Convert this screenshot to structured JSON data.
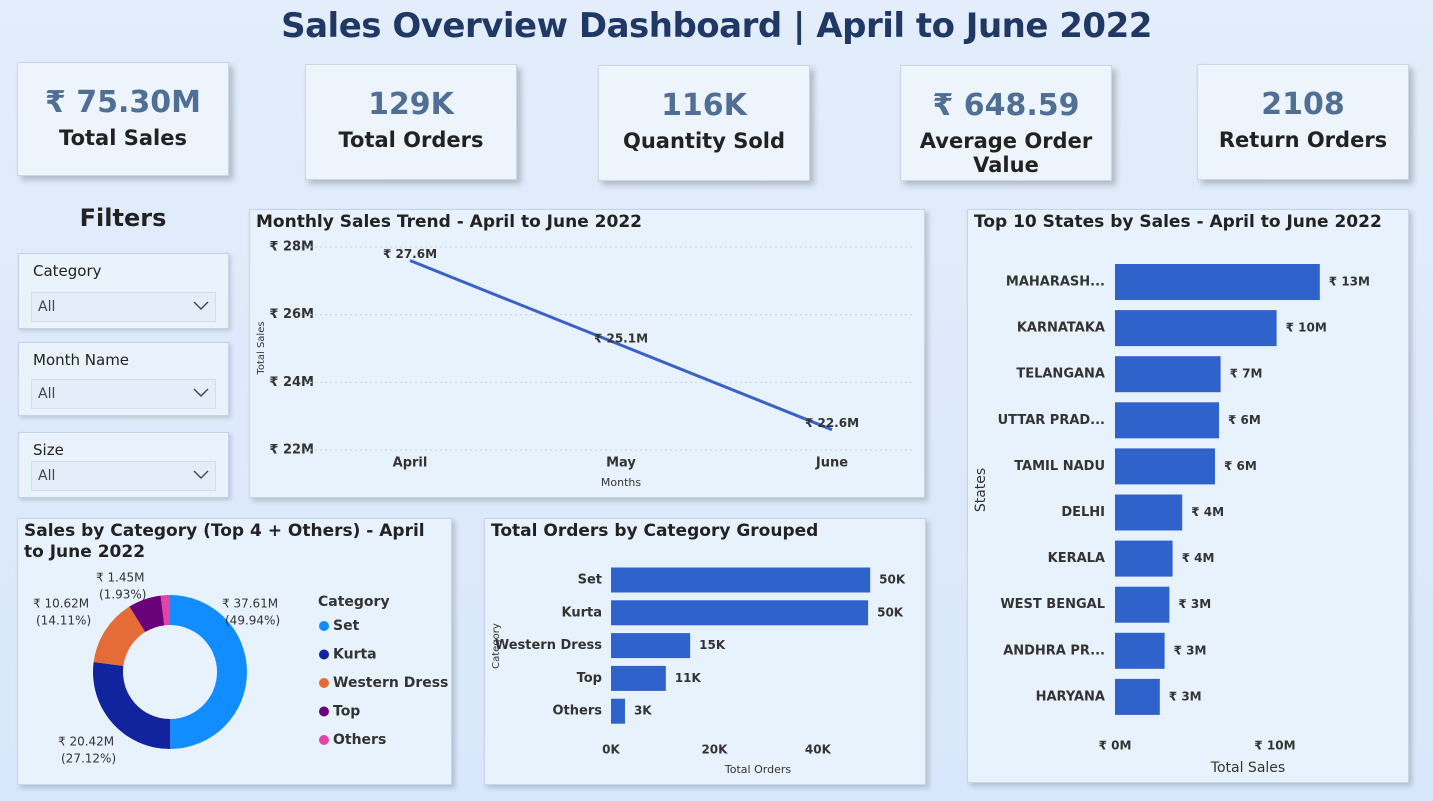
{
  "header": {
    "title": "Sales Overview Dashboard | April to June 2022"
  },
  "kpis": [
    {
      "value": "₹ 75.30M",
      "label": "Total Sales"
    },
    {
      "value": "129K",
      "label": "Total Orders"
    },
    {
      "value": "116K",
      "label": "Quantity Sold"
    },
    {
      "value": "₹ 648.59",
      "label": "Average Order Value"
    },
    {
      "value": "2108",
      "label": "Return Orders"
    }
  ],
  "filters": {
    "title": "Filters",
    "items": [
      {
        "label": "Category",
        "value": "All"
      },
      {
        "label": "Month Name",
        "value": "All"
      },
      {
        "label": "Size",
        "value": "All"
      }
    ]
  },
  "chart_data": [
    {
      "type": "line",
      "title": "Monthly Sales Trend - April to June 2022",
      "x_label": "Months",
      "y_label": "Total Sales",
      "categories": [
        "April",
        "May",
        "June"
      ],
      "values": [
        27.6,
        25.1,
        22.6
      ],
      "value_labels": [
        "₹ 27.6M",
        "₹ 25.1M",
        "₹ 22.6M"
      ],
      "color": "#3762c8",
      "ylim": [
        22,
        28
      ],
      "yticks": [
        {
          "value": 22,
          "label": "₹ 22M"
        },
        {
          "value": 24,
          "label": "₹ 24M"
        },
        {
          "value": 26,
          "label": "₹ 26M"
        },
        {
          "value": 28,
          "label": "₹ 28M"
        }
      ],
      "grid": true
    },
    {
      "type": "barh",
      "title": "Top 10 States by Sales - April to June 2022",
      "x_label": "Total Sales",
      "y_label": "States",
      "categories": [
        "MAHARASH...",
        "KARNATAKA",
        "TELANGANA",
        "UTTAR PRAD...",
        "TAMIL NADU",
        "DELHI",
        "KERALA",
        "WEST BENGAL",
        "ANDHRA PR...",
        "HARYANA"
      ],
      "values": [
        12.8,
        10.1,
        6.6,
        6.5,
        6.25,
        4.2,
        3.6,
        3.4,
        3.1,
        2.8
      ],
      "value_labels": [
        "₹ 13M",
        "₹ 10M",
        "₹ 7M",
        "₹ 6M",
        "₹ 6M",
        "₹ 4M",
        "₹ 4M",
        "₹ 3M",
        "₹ 3M",
        "₹ 3M"
      ],
      "color": "#3062cc",
      "xlim": [
        0,
        18
      ],
      "xticks": [
        {
          "value": 0,
          "label": "₹ 0M"
        },
        {
          "value": 10,
          "label": "₹ 10M"
        }
      ],
      "grid": false
    },
    {
      "type": "donut",
      "title": "Sales by Category (Top 4 + Others) - April to June 2022",
      "legend_title": "Category",
      "categories": [
        "Set",
        "Kurta",
        "Western Dress",
        "Top",
        "Others"
      ],
      "values": [
        37.61,
        20.42,
        10.62,
        5.2,
        1.45
      ],
      "value_labels": [
        "₹ 37.61M",
        "₹ 20.42M",
        "₹ 10.62M",
        null,
        "₹ 1.45M"
      ],
      "percent_labels": [
        "(49.94%)",
        "(27.12%)",
        "(14.11%)",
        null,
        "(1.93%)"
      ],
      "colors": [
        "#118dff",
        "#12239e",
        "#e66c37",
        "#6b007b",
        "#e044a7"
      ],
      "legend": "right"
    },
    {
      "type": "barh",
      "title": "Total Orders by Category Grouped",
      "x_label": "Total Orders",
      "y_label": "Category",
      "categories": [
        "Set",
        "Kurta",
        "Western Dress",
        "Top",
        "Others"
      ],
      "values": [
        50.1,
        49.7,
        15.3,
        10.6,
        2.7
      ],
      "value_labels": [
        "50K",
        "50K",
        "15K",
        "11K",
        "3K"
      ],
      "color": "#3062cc",
      "xlim": [
        0,
        52
      ],
      "xticks": [
        {
          "value": 0,
          "label": "0K"
        },
        {
          "value": 20,
          "label": "20K"
        },
        {
          "value": 40,
          "label": "40K"
        }
      ],
      "grid": false
    }
  ]
}
